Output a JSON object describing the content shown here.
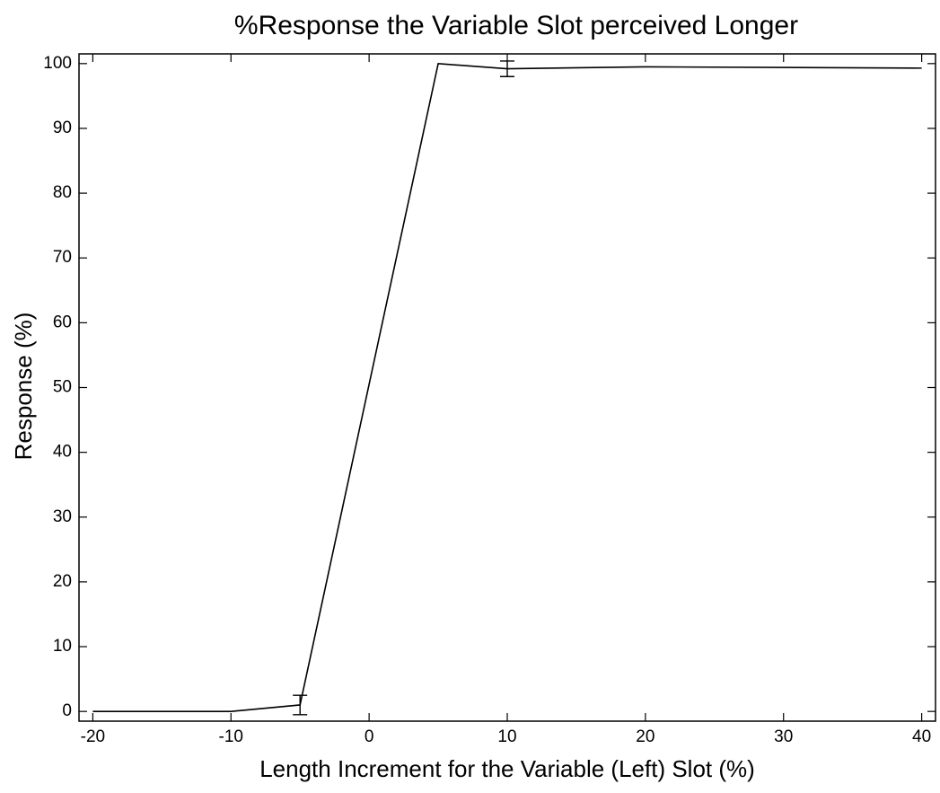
{
  "chart_data": {
    "type": "line",
    "title": "%Response the Variable Slot perceived Longer",
    "x_label": "Length Increment for the Variable (Left) Slot (%)",
    "y_label": "Response (%)",
    "x": [
      -20,
      -10,
      -5,
      5,
      10,
      20,
      40
    ],
    "series": [
      {
        "color": "#000000",
        "values": [
          0,
          0,
          1,
          100,
          99.2,
          99.5,
          99.3
        ],
        "errors": [
          null,
          null,
          1.5,
          null,
          1.2,
          null,
          null
        ]
      }
    ],
    "xlim": [
      -21,
      41
    ],
    "xticks": [
      -20,
      -10,
      0,
      10,
      20,
      30,
      40
    ],
    "ylim": [
      -1.5,
      101.5
    ],
    "yticks": [
      0,
      10,
      20,
      30,
      40,
      50,
      60,
      70,
      80,
      90,
      100
    ],
    "grid": false
  }
}
